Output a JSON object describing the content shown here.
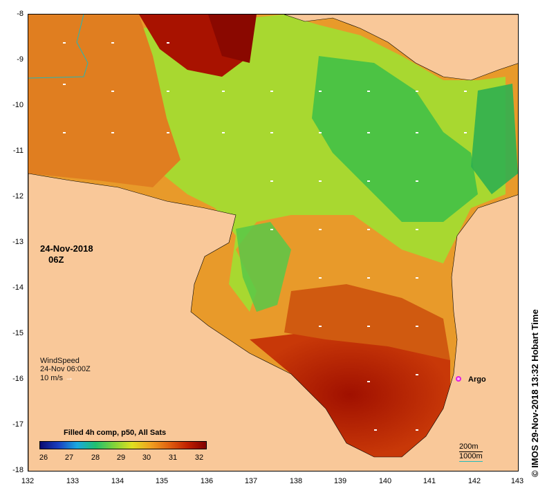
{
  "map": {
    "lat_ticks": [
      "-8",
      "-9",
      "-10",
      "-11",
      "-12",
      "-13",
      "-14",
      "-15",
      "-16",
      "-17",
      "-18"
    ],
    "lon_ticks": [
      "132",
      "133",
      "134",
      "135",
      "136",
      "137",
      "138",
      "139",
      "140",
      "141",
      "142",
      "143"
    ],
    "lat_range": [
      -8,
      -18
    ],
    "lon_range": [
      132,
      143
    ]
  },
  "date_label": "24-Nov-2018",
  "time_label": "06Z",
  "wind": {
    "title": "WindSpeed",
    "time": "24-Nov 06:00Z",
    "scale": "10 m/s",
    "arrow_icon": "right-arrow-icon"
  },
  "argo_label": "Argo",
  "colorbar": {
    "title": "Filled 4h comp, p50, All Sats",
    "ticks": [
      "26",
      "27",
      "28",
      "29",
      "30",
      "31",
      "32"
    ]
  },
  "isobaths": {
    "line1": "200m",
    "line2": "1000m"
  },
  "copyright": "© IMOS 29-Nov-2018 13:32 Hobart Time",
  "colors": {
    "land": "#f9c899",
    "argo": "#e020e0"
  }
}
